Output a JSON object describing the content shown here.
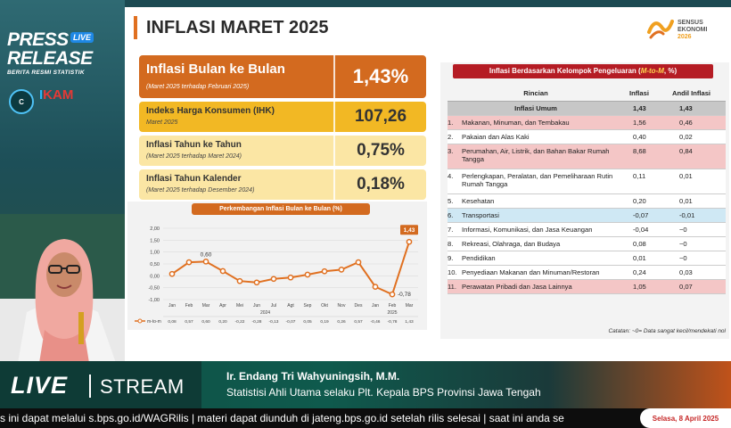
{
  "branding": {
    "press_line1": "PRESS",
    "press_line2": "RELEASE",
    "live_tag": "LIVE",
    "brs": "BERITA RESMI STATISTIK",
    "logo_c": "C",
    "ikam_i": "I",
    "ikam_rest": "KAM"
  },
  "slide": {
    "title": "INFLASI MARET 2025",
    "sensus_line1": "SENSUS",
    "sensus_line2": "EKONOMI",
    "sensus_line3": "2026",
    "boxes": {
      "mtm": {
        "label": "Inflasi Bulan ke Bulan",
        "sub": "(Maret 2025 terhadap Februari 2025)",
        "value": "1,43%"
      },
      "ihk": {
        "label": "Indeks Harga Konsumen (IHK)",
        "sub": "Maret 2025",
        "value": "107,26"
      },
      "yoy": {
        "label": "Inflasi Tahun ke Tahun",
        "sub": "(Maret 2025 terhadap Maret 2024)",
        "value": "0,75%"
      },
      "ytd": {
        "label": "Inflasi Tahun Kalender",
        "sub": "(Maret 2025 terhadap Desember 2024)",
        "value": "0,18%"
      }
    },
    "chart_title": "Perkembangan Inflasi Bulan ke Bulan (%)",
    "table_title_prefix": "Inflasi Berdasarkan Kelompok Pengeluaran (",
    "table_title_hl": "M-to-M",
    "table_title_suffix": ", %)",
    "table": {
      "headers": [
        "Rincian",
        "Inflasi",
        "Andil Inflasi"
      ],
      "general": {
        "label": "Inflasi Umum",
        "inflasi": "1,43",
        "andil": "1,43"
      },
      "rows": [
        {
          "no": "1.",
          "label": "Makanan, Minuman, dan Tembakau",
          "inflasi": "1,56",
          "andil": "0,46",
          "style": "pink"
        },
        {
          "no": "2.",
          "label": "Pakaian dan Alas Kaki",
          "inflasi": "0,40",
          "andil": "0,02",
          "style": "white"
        },
        {
          "no": "3.",
          "label": "Perumahan, Air, Listrik, dan Bahan Bakar Rumah Tangga",
          "inflasi": "8,68",
          "andil": "0,84",
          "style": "pink"
        },
        {
          "no": "4.",
          "label": "Perlengkapan, Peralatan, dan Pemeliharaan Rutin Rumah Tangga",
          "inflasi": "0,11",
          "andil": "0,01",
          "style": "white"
        },
        {
          "no": "5.",
          "label": "Kesehatan",
          "inflasi": "0,20",
          "andil": "0,01",
          "style": "white"
        },
        {
          "no": "6.",
          "label": "Transportasi",
          "inflasi": "-0,07",
          "andil": "-0,01",
          "style": "blue"
        },
        {
          "no": "7.",
          "label": "Informasi, Komunikasi, dan Jasa Keuangan",
          "inflasi": "-0,04",
          "andil": "~0",
          "style": "white"
        },
        {
          "no": "8.",
          "label": "Rekreasi, Olahraga, dan Budaya",
          "inflasi": "0,08",
          "andil": "~0",
          "style": "white"
        },
        {
          "no": "9.",
          "label": "Pendidikan",
          "inflasi": "0,01",
          "andil": "~0",
          "style": "white"
        },
        {
          "no": "10.",
          "label": "Penyediaan Makanan dan Minuman/Restoran",
          "inflasi": "0,24",
          "andil": "0,03",
          "style": "white"
        },
        {
          "no": "11.",
          "label": "Perawatan Pribadi dan Jasa Lainnya",
          "inflasi": "1,05",
          "andil": "0,07",
          "style": "pink"
        }
      ],
      "note": "Catatan: ~0= Data sangat kecil/mendekati nol"
    }
  },
  "chart_data": {
    "type": "line",
    "title": "Perkembangan Inflasi Bulan ke Bulan (%)",
    "categories": [
      "Jan",
      "Feb",
      "Mar",
      "Apr",
      "Mei",
      "Jun",
      "Jul",
      "Agt",
      "Sep",
      "Okt",
      "Nov",
      "Des",
      "Jan",
      "Feb",
      "Mar"
    ],
    "category_values": [
      "0,08",
      "0,57",
      "0,60",
      "0,20",
      "-0,22",
      "-0,28",
      "-0,13",
      "-0,07",
      "0,05",
      "0,19",
      "0,26",
      "0,57",
      "-0,46",
      "-0,78",
      "1,43"
    ],
    "year_labels": [
      "2024",
      "2025"
    ],
    "series": [
      {
        "name": "m-to-m",
        "values": [
          0.08,
          0.57,
          0.6,
          0.2,
          -0.22,
          -0.28,
          -0.13,
          -0.07,
          0.05,
          0.19,
          0.26,
          0.57,
          -0.46,
          -0.78,
          1.43
        ]
      }
    ],
    "annotations": [
      "0,60",
      "1,43",
      "-0,78"
    ],
    "yticks": [
      "2,00",
      "1,50",
      "1,00",
      "0,50",
      "0,00",
      "-0,50",
      "-1,00"
    ],
    "ylim": [
      -1.0,
      2.0
    ],
    "line_color": "#e07020",
    "grid": true
  },
  "presenter": {
    "name": "Ir. Endang Tri Wahyuningsih, M.M.",
    "role": "Statistisi Ahli Utama selaku Plt. Kepala BPS Provinsi Jawa Tengah"
  },
  "stream": {
    "live": "LIVE",
    "stream": "STREAM"
  },
  "ticker": {
    "text": "s ini dapat melalui s.bps.go.id/WAGRilis  |  materi dapat diunduh di jateng.bps.go.id setelah rilis selesai  |  saat ini anda se",
    "date": "Selasa, 8 April 2025"
  },
  "colors": {
    "orange": "#d36a1f",
    "yellow": "#f2b824",
    "light_yellow": "#fbe6a4",
    "red": "#b51c24"
  }
}
